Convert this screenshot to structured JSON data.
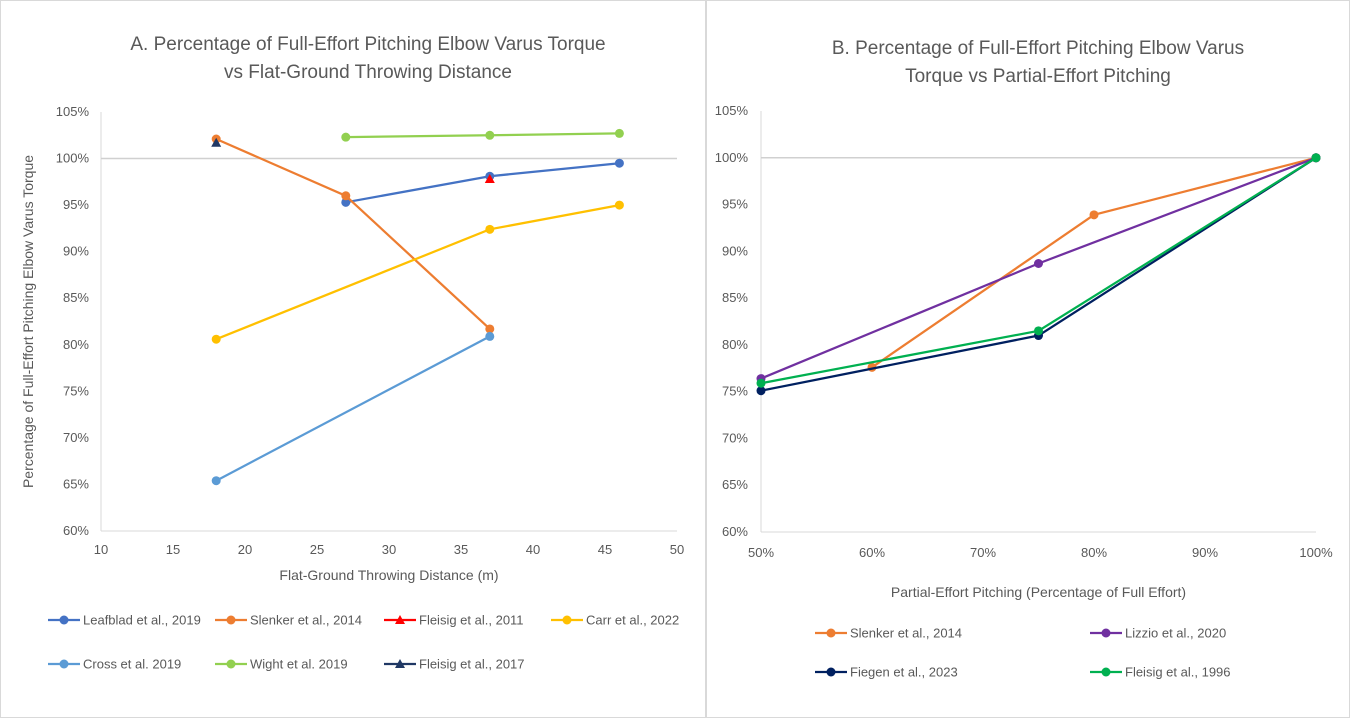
{
  "chart_data": [
    {
      "type": "line",
      "title": [
        "A. Percentage of Full-Effort Pitching Elbow Varus Torque",
        "vs Flat-Ground Throwing Distance"
      ],
      "xlabel": "Flat-Ground Throwing Distance (m)",
      "ylabel": "Percentage of Full-Effort Pitching Elbow Varus Torque",
      "xlim": [
        10,
        50
      ],
      "xticks": [
        10,
        15,
        20,
        25,
        30,
        35,
        40,
        45,
        50
      ],
      "ylim": [
        60,
        105
      ],
      "yticks": [
        60,
        65,
        70,
        75,
        80,
        85,
        90,
        95,
        100,
        105
      ],
      "y_unit": "%",
      "reference_line": 100,
      "legend": "bottom",
      "series": [
        {
          "name": "Leafblad et al., 2019",
          "color": "#4472C4",
          "marker": "circle",
          "x": [
            27,
            37,
            46
          ],
          "y": [
            95.3,
            98.1,
            99.5
          ]
        },
        {
          "name": "Slenker et al., 2014",
          "color": "#ED7D31",
          "marker": "circle",
          "x": [
            18,
            27,
            37
          ],
          "y": [
            102.1,
            96.0,
            81.7
          ]
        },
        {
          "name": "Fleisig et al., 2011",
          "color": "#FF0000",
          "marker": "triangle",
          "x": [
            37
          ],
          "y": [
            97.8
          ]
        },
        {
          "name": "Carr et al., 2022",
          "color": "#FFC000",
          "marker": "circle",
          "x": [
            18,
            37,
            46
          ],
          "y": [
            80.6,
            92.4,
            95.0
          ]
        },
        {
          "name": "Cross et al. 2019",
          "color": "#5B9BD5",
          "marker": "circle",
          "x": [
            18,
            37
          ],
          "y": [
            65.4,
            80.9
          ]
        },
        {
          "name": "Wight et al. 2019",
          "color": "#92D050",
          "marker": "circle",
          "x": [
            27,
            37,
            46
          ],
          "y": [
            102.3,
            102.5,
            102.7
          ]
        },
        {
          "name": "Fleisig et al., 2017",
          "color": "#203864",
          "marker": "triangle",
          "x": [
            18
          ],
          "y": [
            101.7
          ]
        }
      ]
    },
    {
      "type": "line",
      "title": [
        "B. Percentage of Full-Effort Pitching Elbow Varus",
        "Torque vs Partial-Effort Pitching"
      ],
      "xlabel": "Partial-Effort Pitching (Percentage of Full Effort)",
      "ylabel": "",
      "xlim": [
        50,
        100
      ],
      "xticks": [
        50,
        60,
        70,
        80,
        90,
        100
      ],
      "x_unit": "%",
      "ylim": [
        60,
        105
      ],
      "yticks": [
        60,
        65,
        70,
        75,
        80,
        85,
        90,
        95,
        100,
        105
      ],
      "y_unit": "%",
      "reference_line": 100,
      "legend": "bottom",
      "series": [
        {
          "name": "Slenker et al., 2014",
          "color": "#ED7D31",
          "marker": "circle",
          "x": [
            60,
            80,
            100
          ],
          "y": [
            77.6,
            93.9,
            100
          ]
        },
        {
          "name": "Lizzio et al., 2020",
          "color": "#7030A0",
          "marker": "circle",
          "x": [
            50,
            75,
            100
          ],
          "y": [
            76.4,
            88.7,
            100
          ]
        },
        {
          "name": "Fiegen et al., 2023",
          "color": "#002060",
          "marker": "circle",
          "x": [
            50,
            75,
            100
          ],
          "y": [
            75.1,
            81.0,
            100
          ]
        },
        {
          "name": "Fleisig et al., 1996",
          "color": "#00B050",
          "marker": "circle",
          "x": [
            50,
            75,
            100
          ],
          "y": [
            75.9,
            81.5,
            100
          ]
        }
      ]
    }
  ]
}
